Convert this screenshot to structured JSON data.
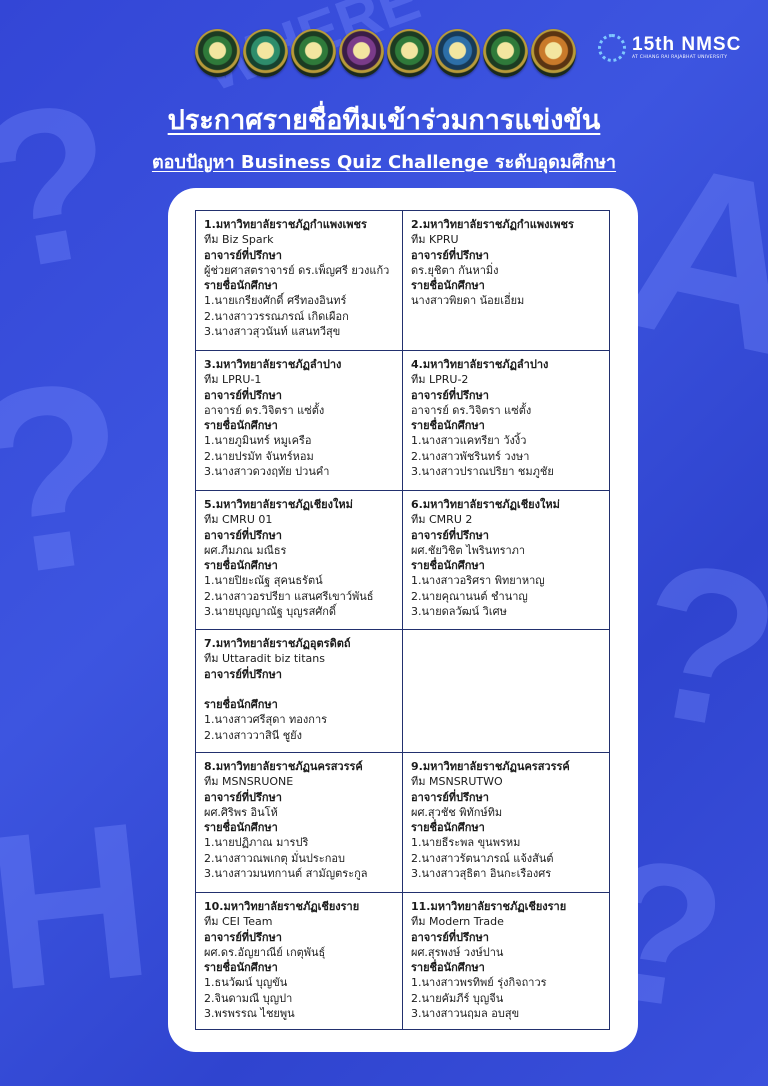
{
  "header": {
    "title": "ประกาศรายชื่อทีมเข้าร่วมการแข่งขัน",
    "subtitle": "ตอบปัญหา Business Quiz Challenge ระดับอุดมศึกษา",
    "event_logo": {
      "text": "15th NMSC",
      "tagline": "AT CHIANG RAI RAJABHAT UNIVERSITY"
    },
    "university_logos": 8
  },
  "colors": {
    "background": "#3346d6",
    "card": "#ffffff",
    "border": "#22306e"
  },
  "teams": [
    {
      "university": "1.มหาวิทยาลัยราชภัฏกำแพงเพชร",
      "team": "ทีม Biz Spark",
      "advisor_label": "อาจารย์ที่ปรึกษา",
      "advisor": "ผู้ช่วยศาสตราจารย์ ดร.เพ็ญศรี ยวงแก้ว",
      "students_label": "รายชื่อนักศึกษา",
      "students": [
        "1.นายเกรียงศักดิ์ ศรีทองอินทร์",
        "2.นางสาววรรณภรณ์ เกิดเผือก",
        "3.นางสาวสุวนันท์ แสนทวีสุข"
      ]
    },
    {
      "university": "2.มหาวิทยาลัยราชภัฏกำแพงเพชร",
      "team": "ทีม KPRU",
      "advisor_label": "อาจารย์ที่ปรึกษา",
      "advisor": "ดร.ยุชิตา กันหามิ่ง",
      "students_label": "รายชื่อนักศึกษา",
      "students": [
        "นางสาวพิยดา น้อยเอี่ยม"
      ]
    },
    {
      "university": "3.มหาวิทยาลัยราชภัฏลำปาง",
      "team": "ทีม LPRU-1",
      "advisor_label": "อาจารย์ที่ปรึกษา",
      "advisor": "อาจารย์ ดร.วิจิตรา แซ่ตั้ง",
      "students_label": "รายชื่อนักศึกษา",
      "students": [
        " 1.นายภูมินทร์ หมูเครือ",
        "2.นายปรมัท จันทร์หอม",
        " 3.นางสาวดวงฤทัย ปวนคำ"
      ]
    },
    {
      "university": "4.มหาวิทยาลัยราชภัฏลำปาง",
      "team": "ทีม LPRU-2",
      "advisor_label": "อาจารย์ที่ปรึกษา",
      "advisor": "อาจารย์ ดร.วิจิตรา แซ่ตั้ง",
      "students_label": "รายชื่อนักศึกษา",
      "students": [
        "1.นางสาวแคทรียา วังงิ้ว",
        "2.นางสาวพัชรินทร์ วงษา",
        "3.นางสาวปราณปริยา ชมภูชัย"
      ]
    },
    {
      "university": "5.มหาวิทยาลัยราชภัฏเชียงใหม่",
      "team": "ทีม CMRU 01",
      "advisor_label": "อาจารย์ที่ปรึกษา",
      "advisor": "ผศ.ภีมภณ มณีธร",
      "students_label": "รายชื่อนักศึกษา",
      "students": [
        "1.นายปิยะณัฐ สุคนธรัตน์",
        "2.นางสาวอรปรียา แสนศรีเขาว์พันธ์",
        "3.นายบุญญาณัฐ บุญรสศักดิ์"
      ]
    },
    {
      "university": "6.มหาวิทยาลัยราชภัฏเชียงใหม่",
      "team": "ทีม CMRU 2",
      "advisor_label": "อาจารย์ที่ปรึกษา",
      "advisor": "ผศ.ชัยวิชิต ไพรินทราภา",
      "students_label": "รายชื่อนักศึกษา",
      "students": [
        "1.นางสาวอริศรา พิทยาหาญ",
        "2.นายคุณานนต์ ชำนาญ",
        "3.นายดลวัฒน์ วิเศษ"
      ]
    },
    {
      "university": "7.มหาวิทยาลัยราชภัฏอุตรดิตถ์",
      "team": "ทีม Uttaradit biz titans",
      "advisor_label": "อาจารย์ที่ปรึกษา",
      "advisor": "",
      "students_label": "รายชื่อนักศึกษา",
      "students": [
        "1.นางสาวศรีสุดา ทองการ",
        "2.นางสาววาสินี ชูยัง"
      ]
    },
    null,
    {
      "university": "8.มหาวิทยาลัยราชภัฏนครสวรรค์",
      "team": "ทีม MSNSRUONE",
      "advisor_label": "อาจารย์ที่ปรึกษา",
      "advisor": "ผศ.ศิริพร อินโห้",
      "students_label": "รายชื่อนักศึกษา",
      "students": [
        "1.นายปฏิภาณ มารปริ",
        "2.นางสาวณพเกตุ มั่นประกอบ",
        "3.นางสาวมนทกานต์ สามัญตระกูล"
      ]
    },
    {
      "university": "9.มหาวิทยาลัยราชภัฏนครสวรรค์",
      "team": "ทีม MSNSRUTWO",
      "advisor_label": "อาจารย์ที่ปรึกษา",
      "advisor": "ผศ.สุวชัช พิทักษ์ทิม",
      "students_label": "รายชื่อนักศึกษา",
      "students": [
        " 1.นายธีระพล ขุนพรหม",
        "2.นางสาวรัตนาภรณ์ แจ้งสันต์",
        " 3.นางสาวสุธิตา อินกะเรืองศร"
      ]
    },
    {
      "university": "10.มหาวิทยาลัยราชภัฏเชียงราย",
      "team": "ทีม CEI Team",
      "advisor_label": "อาจารย์ที่ปรึกษา",
      "advisor": " ผศ.ดร.อัญยาณีย์ เกตุพันธุ์",
      "students_label": "รายชื่อนักศึกษา",
      "students": [
        " 1.ธนวัฒน์ บุญขัน",
        "2.จินดามณี บุญปา",
        " 3.พรพรรณ ไชยพูน"
      ]
    },
    {
      "university": "11.มหาวิทยาลัยราชภัฏเชียงราย",
      "team": "ทีม Modern Trade",
      "advisor_label": "อาจารย์ที่ปรึกษา",
      "advisor": " ผศ.สุรพงษ์ วงษ์ปาน",
      "students_label": "รายชื่อนักศึกษา",
      "students": [
        " 1.นางสาวพรทิพย์ รุ่งกิจถาวร",
        "2.นายคัมภีร์ บุญจีน",
        " 3.นางสาวนฤมล อบสุข"
      ]
    }
  ]
}
